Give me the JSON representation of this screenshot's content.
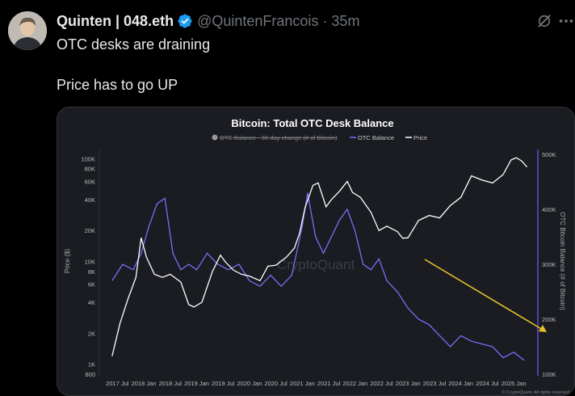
{
  "tweet": {
    "display_name": "Quinten | 048.eth",
    "handle": "@QuintenFrancois",
    "separator": "·",
    "time": "35m",
    "text_line1": "OTC desks are draining",
    "text_line2": "Price has to go UP"
  },
  "icons": {
    "verified": "verified-badge-icon",
    "grok": "grok-icon",
    "more": "more-dots-icon"
  },
  "colors": {
    "background": "#000000",
    "verified": "#1d9bf0",
    "price": "#ffffff",
    "otc": "#7b6cf6",
    "arrow": "#e6c229"
  },
  "chart_data": {
    "type": "line",
    "title": "Bitcoin: Total OTC Desk Balance",
    "legend": [
      "OTC Balance - 30-day change (# of Bitcoin)",
      "OTC Balance",
      "Price"
    ],
    "ylabel_left": "Price ($)",
    "ylabel_right": "OTC Bitcoin Balance (# of Bitcoin)",
    "left_scale": "log",
    "left_ticks": [
      "100K",
      "80K",
      "60K",
      "40K",
      "20K",
      "10K",
      "8K",
      "6K",
      "4K",
      "2K",
      "1K",
      "800"
    ],
    "right_ticks": [
      "500K",
      "400K",
      "300K",
      "200K",
      "100K"
    ],
    "x_ticks": [
      "2017 Jul",
      "2018 Jan",
      "2018 Jul",
      "2019 Jan",
      "2019 Jul",
      "2020 Jan",
      "2020 Jul",
      "2021 Jan",
      "2021 Jul",
      "2022 Jan",
      "2022 Jul",
      "2023 Jan",
      "2023 Jul",
      "2024 Jan",
      "2024 Jul",
      "2025 Jan"
    ],
    "watermark": "CryptoQuant",
    "footer": "© CryptoQuant. All rights reserved",
    "series": [
      {
        "name": "Price",
        "x": [
          2017.4,
          2017.55,
          2017.7,
          2017.85,
          2017.95,
          2018.05,
          2018.2,
          2018.35,
          2018.5,
          2018.7,
          2018.85,
          2018.95,
          2019.1,
          2019.3,
          2019.45,
          2019.55,
          2019.7,
          2019.85,
          2020.0,
          2020.2,
          2020.35,
          2020.5,
          2020.7,
          2020.85,
          2020.95,
          2021.05,
          2021.2,
          2021.3,
          2021.45,
          2021.55,
          2021.7,
          2021.85,
          2021.95,
          2022.1,
          2022.3,
          2022.45,
          2022.6,
          2022.8,
          2022.9,
          2023.0,
          2023.2,
          2023.4,
          2023.6,
          2023.8,
          2024.0,
          2024.2,
          2024.4,
          2024.6,
          2024.8,
          2024.95,
          2025.05,
          2025.15,
          2025.25
        ],
        "values": [
          1200,
          2500,
          4300,
          7000,
          17000,
          11000,
          7500,
          7000,
          7500,
          6300,
          3800,
          3600,
          4000,
          8000,
          11500,
          9800,
          8200,
          7500,
          7200,
          6500,
          9000,
          9200,
          11000,
          13500,
          19000,
          33000,
          55000,
          58000,
          34000,
          40000,
          48000,
          60000,
          47000,
          42000,
          30000,
          20000,
          22000,
          19500,
          16800,
          17000,
          25000,
          28000,
          26500,
          35000,
          42000,
          68000,
          62000,
          58000,
          70000,
          97000,
          102000,
          95000,
          83000
        ]
      },
      {
        "name": "OTC Balance",
        "x": [
          2017.4,
          2017.6,
          2017.8,
          2017.95,
          2018.1,
          2018.25,
          2018.4,
          2018.55,
          2018.7,
          2018.85,
          2019.0,
          2019.2,
          2019.4,
          2019.6,
          2019.8,
          2020.0,
          2020.2,
          2020.4,
          2020.6,
          2020.8,
          2021.0,
          2021.1,
          2021.25,
          2021.4,
          2021.55,
          2021.7,
          2021.85,
          2022.0,
          2022.15,
          2022.3,
          2022.45,
          2022.6,
          2022.8,
          2023.0,
          2023.2,
          2023.4,
          2023.6,
          2023.8,
          2024.0,
          2024.2,
          2024.4,
          2024.6,
          2024.8,
          2025.0,
          2025.2
        ],
        "values": [
          270000,
          300000,
          290000,
          320000,
          370000,
          410000,
          420000,
          320000,
          290000,
          300000,
          290000,
          320000,
          300000,
          290000,
          300000,
          270000,
          260000,
          280000,
          260000,
          280000,
          370000,
          430000,
          350000,
          320000,
          350000,
          380000,
          400000,
          360000,
          300000,
          290000,
          310000,
          270000,
          250000,
          220000,
          200000,
          190000,
          170000,
          150000,
          170000,
          160000,
          155000,
          150000,
          130000,
          140000,
          125000
        ]
      }
    ]
  }
}
